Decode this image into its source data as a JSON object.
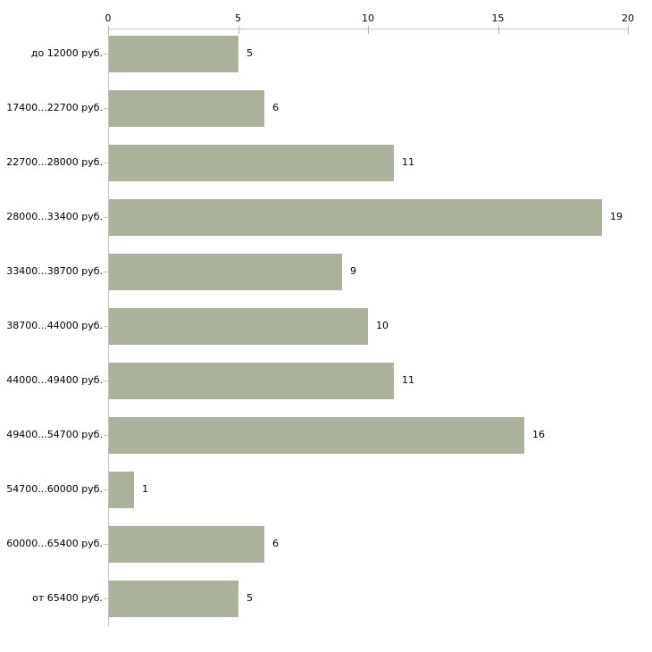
{
  "chart": {
    "background_color": "#ffffff",
    "bar_color": "#abb29b",
    "axis_line_color": "#c4c4c4",
    "tick_mark_color": "#b8bc86",
    "text_color": "#000000"
  },
  "chart_data": {
    "type": "bar",
    "orientation": "horizontal",
    "title": "",
    "xlabel": "",
    "ylabel": "",
    "xlim": [
      0,
      20
    ],
    "x_ticks": [
      0,
      5,
      10,
      15,
      20
    ],
    "x_axis_position": "top",
    "grid": false,
    "legend": false,
    "value_labels": true,
    "categories": [
      "до 12000 руб.",
      "17400...22700 руб.",
      "22700...28000 руб.",
      "28000...33400 руб.",
      "33400...38700 руб.",
      "38700...44000 руб.",
      "44000...49400 руб.",
      "49400...54700 руб.",
      "54700...60000 руб.",
      "60000...65400 руб.",
      "от 65400 руб."
    ],
    "values": [
      5,
      6,
      11,
      19,
      9,
      10,
      11,
      16,
      1,
      6,
      5
    ]
  }
}
